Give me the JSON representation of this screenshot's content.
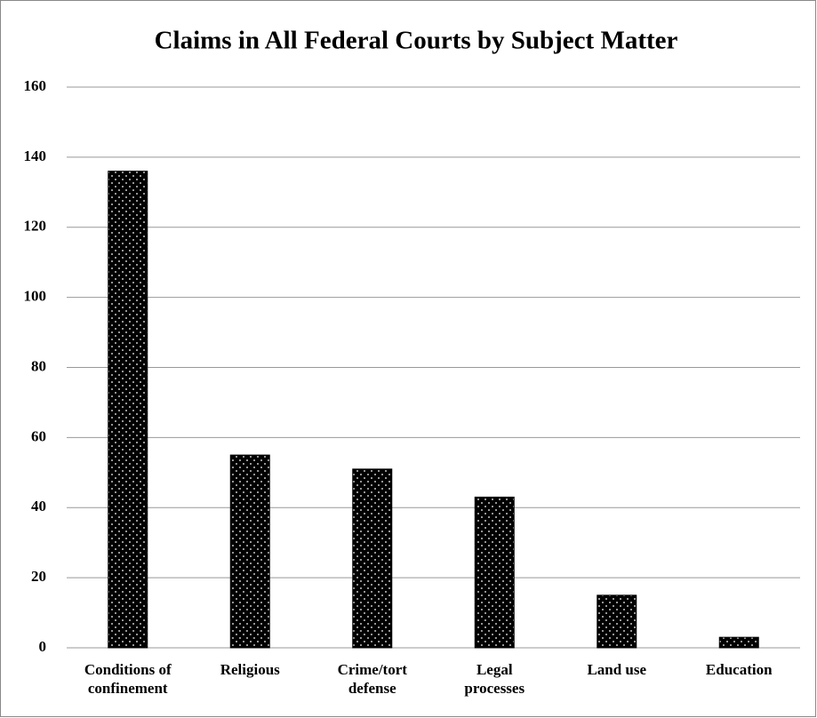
{
  "chart_data": {
    "type": "bar",
    "title": "Claims in All Federal Courts by Subject Matter",
    "categories": [
      "Conditions of confinement",
      "Religious",
      "Crime/tort defense",
      "Legal processes",
      "Land use",
      "Education"
    ],
    "values": [
      136,
      55,
      51,
      43,
      15,
      3
    ],
    "color": "#000000",
    "ylim": [
      0,
      160
    ],
    "yticks": [
      0,
      20,
      40,
      60,
      80,
      100,
      120,
      140,
      160
    ],
    "grid": true
  }
}
